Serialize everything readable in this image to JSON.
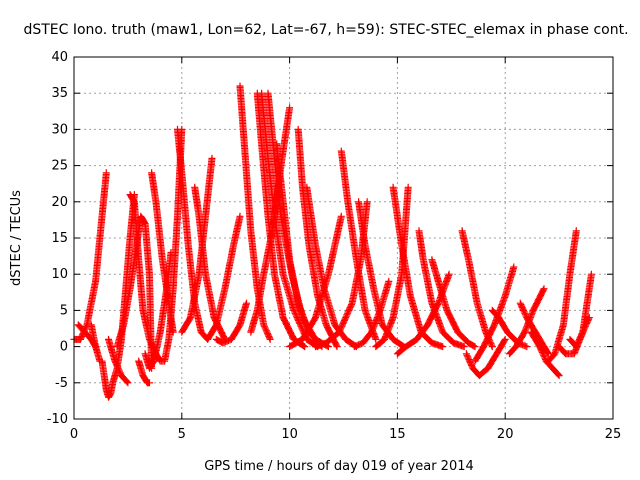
{
  "chart_data": {
    "type": "scatter",
    "title": "dSTEC Iono. truth (maw1, Lon=62, Lat=-67, h=59): STEC-STEC_elemax in phase cont.",
    "xlabel": "GPS time / hours of day 019 of year 2014",
    "ylabel": "dSTEC  / TECUs",
    "xlim": [
      0,
      25
    ],
    "ylim": [
      -10,
      40
    ],
    "xticks": [
      0,
      5,
      10,
      15,
      20,
      25
    ],
    "yticks": [
      -10,
      -5,
      0,
      5,
      10,
      15,
      20,
      25,
      30,
      35,
      40
    ],
    "grid": true,
    "marker": "+",
    "color": "#ff0000",
    "series": [
      {
        "x": [
          0.0,
          0.3,
          0.6,
          1.0,
          1.3,
          1.5
        ],
        "y": [
          1,
          1,
          3,
          9,
          18,
          24
        ]
      },
      {
        "x": [
          0.2,
          0.5,
          0.8,
          1.0
        ],
        "y": [
          3,
          2,
          1,
          0
        ]
      },
      {
        "x": [
          0.8,
          1.0,
          1.2
        ],
        "y": [
          3,
          0,
          -2
        ]
      },
      {
        "x": [
          1.3,
          1.5,
          1.6,
          1.7,
          1.8,
          2.0,
          2.2,
          2.4,
          2.6,
          2.8
        ],
        "y": [
          -2,
          -6,
          -7,
          -6.5,
          -5,
          -3,
          1,
          8,
          15,
          21
        ]
      },
      {
        "x": [
          1.6,
          1.9,
          2.2,
          2.5
        ],
        "y": [
          1,
          -2,
          -4,
          -5
        ]
      },
      {
        "x": [
          2.0,
          2.3,
          2.6,
          2.9,
          3.1,
          3.3,
          3.5,
          3.6
        ],
        "y": [
          0,
          3,
          8,
          14,
          18,
          17,
          10,
          -3
        ]
      },
      {
        "x": [
          2.6,
          2.8,
          3.0,
          3.2,
          3.5,
          3.8,
          4.0,
          4.2,
          4.4,
          4.6,
          4.8,
          5.0
        ],
        "y": [
          21,
          20,
          12,
          5,
          1,
          -1,
          -2,
          -2,
          1,
          8,
          18,
          30
        ]
      },
      {
        "x": [
          3.0,
          3.2,
          3.4,
          3.5
        ],
        "y": [
          -2,
          -4,
          -5,
          -5
        ]
      },
      {
        "x": [
          3.3,
          3.5,
          3.7,
          4.0,
          4.3,
          4.5
        ],
        "y": [
          -1,
          -3,
          -2,
          2,
          8,
          13
        ]
      },
      {
        "x": [
          3.6,
          3.8,
          4.1,
          4.4,
          4.6
        ],
        "y": [
          24,
          20,
          12,
          6,
          2
        ]
      },
      {
        "x": [
          4.8,
          5.0,
          5.3,
          5.6,
          5.9,
          6.2,
          6.6,
          7.0,
          7.4,
          7.7
        ],
        "y": [
          30,
          24,
          14,
          6,
          2,
          1,
          3,
          8,
          14,
          18
        ]
      },
      {
        "x": [
          5.0,
          5.4,
          5.8,
          6.1,
          6.4
        ],
        "y": [
          2,
          4,
          10,
          18,
          26
        ]
      },
      {
        "x": [
          5.6,
          5.8,
          6.1,
          6.5,
          7.0
        ],
        "y": [
          22,
          18,
          10,
          4,
          1
        ]
      },
      {
        "x": [
          6.6,
          6.9,
          7.3,
          7.7,
          8.0
        ],
        "y": [
          1,
          0.5,
          1,
          3,
          6
        ]
      },
      {
        "x": [
          7.7,
          7.9,
          8.2,
          8.5,
          8.8,
          9.1
        ],
        "y": [
          36,
          28,
          16,
          8,
          3,
          1
        ]
      },
      {
        "x": [
          8.2,
          8.5,
          8.8,
          9.2,
          9.6,
          10.0
        ],
        "y": [
          2,
          5,
          10,
          16,
          25,
          33
        ]
      },
      {
        "x": [
          8.5,
          8.7,
          9.0,
          9.3,
          9.7,
          10.2,
          10.7
        ],
        "y": [
          35,
          28,
          18,
          10,
          4,
          1,
          0
        ]
      },
      {
        "x": [
          8.7,
          9.0,
          9.3,
          9.7,
          10.2,
          10.8,
          11.3
        ],
        "y": [
          35,
          26,
          18,
          10,
          5,
          1,
          0
        ]
      },
      {
        "x": [
          9.0,
          9.3,
          9.6,
          10.1,
          10.6,
          11.2,
          11.8
        ],
        "y": [
          35,
          26,
          18,
          10,
          4,
          1,
          0
        ]
      },
      {
        "x": [
          9.4,
          9.7,
          10.0,
          10.4,
          10.9,
          11.5
        ],
        "y": [
          28,
          20,
          12,
          6,
          2,
          0
        ]
      },
      {
        "x": [
          10.0,
          10.6,
          11.2,
          11.8,
          12.4
        ],
        "y": [
          0,
          1,
          4,
          10,
          18
        ]
      },
      {
        "x": [
          10.4,
          10.6,
          10.9,
          11.3,
          11.7,
          12.2
        ],
        "y": [
          30,
          22,
          14,
          7,
          3,
          0
        ]
      },
      {
        "x": [
          10.8,
          11.2,
          11.6,
          12.1,
          12.6,
          13.1
        ],
        "y": [
          22,
          14,
          8,
          3,
          1,
          0
        ]
      },
      {
        "x": [
          11.2,
          11.7,
          12.3,
          12.9,
          13.3,
          13.6
        ],
        "y": [
          0,
          0.5,
          2,
          6,
          12,
          20
        ]
      },
      {
        "x": [
          12.4,
          12.7,
          13.1,
          13.5,
          14.0
        ],
        "y": [
          27,
          20,
          12,
          5,
          1
        ]
      },
      {
        "x": [
          13.0,
          13.4,
          13.8,
          14.2,
          14.6
        ],
        "y": [
          0,
          0.5,
          2,
          5,
          9
        ]
      },
      {
        "x": [
          13.2,
          13.5,
          13.9,
          14.3,
          14.8,
          15.3
        ],
        "y": [
          20,
          14,
          8,
          3,
          1,
          0
        ]
      },
      {
        "x": [
          14.0,
          14.4,
          14.8,
          15.2,
          15.5
        ],
        "y": [
          0,
          1,
          4,
          10,
          22
        ]
      },
      {
        "x": [
          14.8,
          15.2,
          15.6,
          16.1,
          16.6,
          17.1
        ],
        "y": [
          22,
          14,
          7,
          2,
          0.5,
          0
        ]
      },
      {
        "x": [
          15.0,
          15.4,
          15.9,
          16.4,
          16.9,
          17.4
        ],
        "y": [
          -1,
          0,
          1,
          3,
          6,
          10
        ]
      },
      {
        "x": [
          16.0,
          16.2,
          16.6,
          17.1,
          17.6,
          18.1
        ],
        "y": [
          16,
          12,
          6,
          2,
          0.5,
          0
        ]
      },
      {
        "x": [
          16.6,
          16.9,
          17.3,
          17.8,
          18.3,
          18.6
        ],
        "y": [
          12,
          9,
          5,
          2,
          0.5,
          0
        ]
      },
      {
        "x": [
          18.0,
          18.3,
          18.7,
          19.1,
          19.4
        ],
        "y": [
          16,
          12,
          6,
          2,
          0
        ]
      },
      {
        "x": [
          18.2,
          18.5,
          18.8,
          19.2,
          19.6,
          20.0
        ],
        "y": [
          -1,
          -3,
          -4,
          -3,
          -1,
          1
        ]
      },
      {
        "x": [
          18.6,
          19.0,
          19.5,
          20.0,
          20.4
        ],
        "y": [
          -2,
          0,
          3,
          7,
          11
        ]
      },
      {
        "x": [
          19.4,
          19.7,
          20.1,
          20.6,
          21.0
        ],
        "y": [
          5,
          4,
          2,
          0.5,
          0
        ]
      },
      {
        "x": [
          20.2,
          20.5,
          20.9,
          21.3,
          21.8
        ],
        "y": [
          -1,
          0,
          2,
          5,
          8
        ]
      },
      {
        "x": [
          20.7,
          21.0,
          21.4,
          21.8,
          22.0
        ],
        "y": [
          6,
          4,
          2,
          0,
          -1
        ]
      },
      {
        "x": [
          21.2,
          21.6,
          21.9,
          22.2,
          22.5
        ],
        "y": [
          2,
          0,
          -2,
          -3,
          -4
        ]
      },
      {
        "x": [
          22.0,
          22.3,
          22.7,
          23.0,
          23.3
        ],
        "y": [
          -2,
          -1,
          3,
          10,
          16
        ]
      },
      {
        "x": [
          22.5,
          22.8,
          23.2,
          23.6,
          24.0
        ],
        "y": [
          0,
          -1,
          -1,
          2,
          10
        ]
      },
      {
        "x": [
          23.0,
          23.3,
          23.6,
          23.9
        ],
        "y": [
          1,
          0,
          2,
          4
        ]
      }
    ]
  }
}
